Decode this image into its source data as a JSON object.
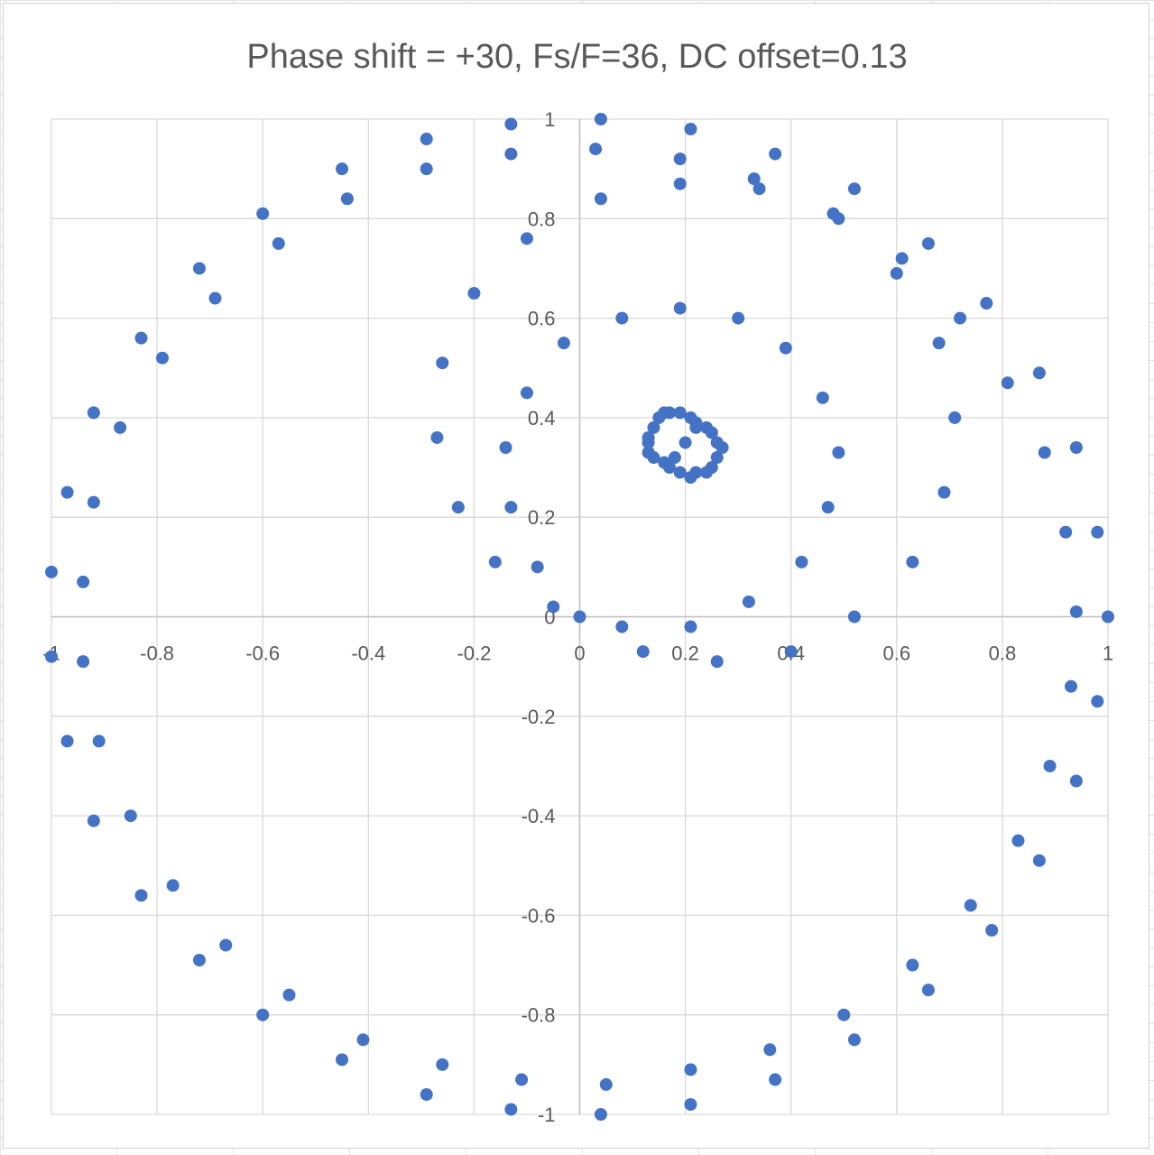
{
  "chart_data": {
    "type": "scatter",
    "title": "Phase shift = +30, Fs/F=36, DC offset=0.13",
    "xlabel": "",
    "ylabel": "",
    "xlim": [
      -1,
      1
    ],
    "ylim": [
      -1,
      1
    ],
    "x_ticks": [
      "-1",
      "-0.8",
      "-0.6",
      "-0.4",
      "-0.2",
      "0",
      "0.2",
      "0.4",
      "0.6",
      "0.8",
      "1"
    ],
    "y_ticks": [
      "1",
      "0.8",
      "0.6",
      "0.4",
      "0.2",
      "0",
      "-0.2",
      "-0.4",
      "-0.6",
      "-0.8",
      "-1"
    ],
    "grid": true,
    "legend": "none",
    "marker_color": "#4472C4",
    "series": [
      {
        "points": [
          [
            -0.13,
            0.99
          ],
          [
            0.04,
            1.0
          ],
          [
            0.21,
            0.98
          ],
          [
            -0.29,
            0.96
          ],
          [
            -0.13,
            0.93
          ],
          [
            0.03,
            0.94
          ],
          [
            0.19,
            0.92
          ],
          [
            0.37,
            0.93
          ],
          [
            -0.45,
            0.9
          ],
          [
            -0.29,
            0.9
          ],
          [
            0.19,
            0.87
          ],
          [
            0.33,
            0.88
          ],
          [
            0.34,
            0.86
          ],
          [
            0.52,
            0.86
          ],
          [
            -0.44,
            0.84
          ],
          [
            0.04,
            0.84
          ],
          [
            -0.6,
            0.81
          ],
          [
            0.48,
            0.81
          ],
          [
            0.49,
            0.8
          ],
          [
            -0.57,
            0.75
          ],
          [
            -0.1,
            0.76
          ],
          [
            0.66,
            0.75
          ],
          [
            0.61,
            0.72
          ],
          [
            0.6,
            0.69
          ],
          [
            -0.72,
            0.7
          ],
          [
            -0.69,
            0.64
          ],
          [
            -0.2,
            0.65
          ],
          [
            0.19,
            0.62
          ],
          [
            0.77,
            0.63
          ],
          [
            0.08,
            0.6
          ],
          [
            0.3,
            0.6
          ],
          [
            0.72,
            0.6
          ],
          [
            -0.83,
            0.56
          ],
          [
            -0.03,
            0.55
          ],
          [
            0.39,
            0.54
          ],
          [
            0.68,
            0.55
          ],
          [
            -0.79,
            0.52
          ],
          [
            -0.26,
            0.51
          ],
          [
            0.81,
            0.47
          ],
          [
            0.87,
            0.49
          ],
          [
            -0.1,
            0.45
          ],
          [
            0.46,
            0.44
          ],
          [
            -0.92,
            0.41
          ],
          [
            0.71,
            0.4
          ],
          [
            -0.87,
            0.38
          ],
          [
            -0.27,
            0.36
          ],
          [
            -0.14,
            0.34
          ],
          [
            0.49,
            0.33
          ],
          [
            0.88,
            0.33
          ],
          [
            0.94,
            0.34
          ],
          [
            -0.97,
            0.25
          ],
          [
            0.69,
            0.25
          ],
          [
            -0.92,
            0.23
          ],
          [
            -0.23,
            0.22
          ],
          [
            -0.13,
            0.22
          ],
          [
            0.47,
            0.22
          ],
          [
            0.92,
            0.17
          ],
          [
            0.98,
            0.17
          ],
          [
            -1.0,
            0.09
          ],
          [
            -0.94,
            0.07
          ],
          [
            -0.16,
            0.11
          ],
          [
            -0.08,
            0.1
          ],
          [
            0.42,
            0.11
          ],
          [
            0.63,
            0.11
          ],
          [
            -0.05,
            0.02
          ],
          [
            0.32,
            0.03
          ],
          [
            0.94,
            0.01
          ],
          [
            0.0,
            0.0
          ],
          [
            0.52,
            0.0
          ],
          [
            1.0,
            0.0
          ],
          [
            0.08,
            -0.02
          ],
          [
            0.21,
            -0.02
          ],
          [
            0.12,
            -0.07
          ],
          [
            0.4,
            -0.07
          ],
          [
            -1.0,
            -0.08
          ],
          [
            -0.94,
            -0.09
          ],
          [
            0.26,
            -0.09
          ],
          [
            0.93,
            -0.14
          ],
          [
            0.98,
            -0.17
          ],
          [
            -0.97,
            -0.25
          ],
          [
            -0.91,
            -0.25
          ],
          [
            0.89,
            -0.3
          ],
          [
            0.94,
            -0.33
          ],
          [
            -0.92,
            -0.41
          ],
          [
            -0.85,
            -0.4
          ],
          [
            0.83,
            -0.45
          ],
          [
            0.87,
            -0.49
          ],
          [
            -0.83,
            -0.56
          ],
          [
            -0.77,
            -0.54
          ],
          [
            0.74,
            -0.58
          ],
          [
            0.78,
            -0.63
          ],
          [
            -0.72,
            -0.69
          ],
          [
            -0.67,
            -0.66
          ],
          [
            0.63,
            -0.7
          ],
          [
            0.66,
            -0.75
          ],
          [
            -0.6,
            -0.8
          ],
          [
            -0.55,
            -0.76
          ],
          [
            0.5,
            -0.8
          ],
          [
            0.52,
            -0.85
          ],
          [
            -0.45,
            -0.89
          ],
          [
            -0.41,
            -0.85
          ],
          [
            0.36,
            -0.87
          ],
          [
            0.37,
            -0.93
          ],
          [
            -0.29,
            -0.96
          ],
          [
            -0.26,
            -0.9
          ],
          [
            0.21,
            -0.91
          ],
          [
            -0.11,
            -0.93
          ],
          [
            0.05,
            -0.94
          ],
          [
            -0.13,
            -0.99
          ],
          [
            0.04,
            -1.0
          ],
          [
            0.21,
            -0.98
          ],
          [
            0.2,
            0.35
          ],
          [
            0.22,
            0.38
          ],
          [
            0.18,
            0.32
          ],
          [
            0.17,
            0.41
          ],
          [
            0.19,
            0.41
          ],
          [
            0.21,
            0.4
          ],
          [
            0.22,
            0.39
          ],
          [
            0.24,
            0.38
          ],
          [
            0.25,
            0.37
          ],
          [
            0.26,
            0.35
          ],
          [
            0.27,
            0.34
          ],
          [
            0.26,
            0.32
          ],
          [
            0.25,
            0.3
          ],
          [
            0.24,
            0.29
          ],
          [
            0.22,
            0.29
          ],
          [
            0.21,
            0.28
          ],
          [
            0.19,
            0.29
          ],
          [
            0.17,
            0.3
          ],
          [
            0.16,
            0.31
          ],
          [
            0.14,
            0.32
          ],
          [
            0.13,
            0.33
          ],
          [
            0.13,
            0.35
          ],
          [
            0.13,
            0.36
          ],
          [
            0.14,
            0.38
          ],
          [
            0.15,
            0.4
          ],
          [
            0.16,
            0.41
          ]
        ]
      }
    ]
  }
}
